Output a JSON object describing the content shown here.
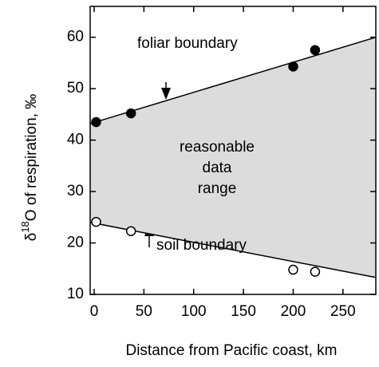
{
  "chart_data": {
    "type": "scatter",
    "x_label": "Distance from Pacific coast, km",
    "y_label": {
      "prefix": "δ",
      "superscript": "18",
      "text": "O of respiration, ‰"
    },
    "xlim": [
      -4,
      283
    ],
    "ylim": [
      10,
      66
    ],
    "xticks": [
      0,
      50,
      100,
      150,
      200,
      250
    ],
    "yticks": [
      10,
      20,
      30,
      40,
      50,
      60
    ],
    "annotation": [
      "reasonable",
      "data",
      "range"
    ],
    "fill_color": "#dcdcdc",
    "series": [
      {
        "name": "foliar boundary",
        "marker": "filled",
        "color": "#000000",
        "x": [
          2,
          37,
          200,
          222
        ],
        "values": [
          43.5,
          45.2,
          54.3,
          57.5
        ],
        "fit": {
          "x": [
            -4,
            283
          ],
          "values": [
            43.2,
            60
          ]
        }
      },
      {
        "name": "soil boundary",
        "marker": "open",
        "color": "#000000",
        "x": [
          2,
          37,
          200,
          222
        ],
        "values": [
          24.1,
          22.3,
          14.8,
          14.4
        ],
        "fit": {
          "x": [
            -4,
            283
          ],
          "values": [
            24.0,
            13.3
          ]
        }
      }
    ]
  }
}
